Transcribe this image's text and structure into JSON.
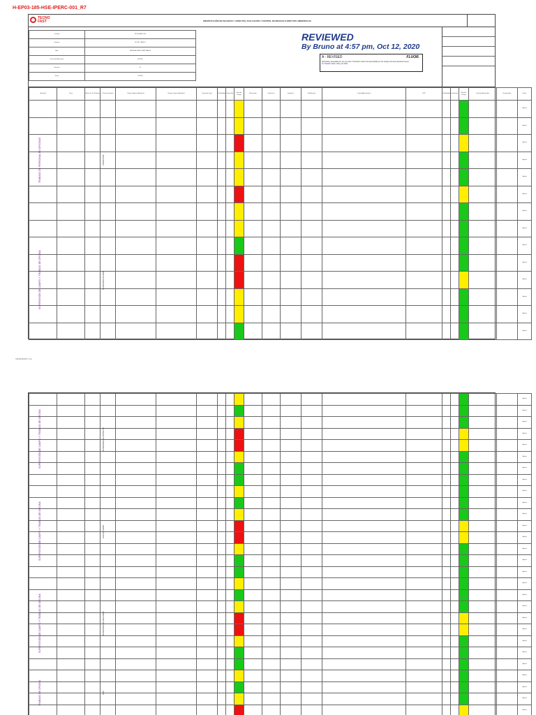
{
  "document": {
    "code": "H-EP03-185-HSE-IPERC-001_R7",
    "title": "IDENTIFICACIÓN DE PELIGROS Y ASPECTOS, EVALUACIÓN Y CONTROL DE RIESGOS E IMPACTOS AMBIENTALES",
    "logo_text_1": "TECNO",
    "logo_text_2": "FAST",
    "footer_note": "TECNOFAST S.A."
  },
  "stamp": {
    "title": "REVIEWED",
    "subtitle": "By Bruno at 4:57 pm, Oct 12, 2020",
    "revision": "A - REVISED",
    "brand": "FLUOR.",
    "note": "Submittal is acceptable for use as noted. Contractor retains full responsibility for the design and work described herein.",
    "signature": "Dr. Rodolfo Tello a May 1st 2021"
  },
  "header_rows": [
    {
      "label": "Contrato",
      "value": "TECNOFAST S.A."
    },
    {
      "label": "Proyecto",
      "value": "FLUOR - ANGLO"
    },
    {
      "label": "Área",
      "value": "INSTALACIONES TEMPORALES"
    },
    {
      "label": "Fecha de Elaboración",
      "value": "08-2020"
    },
    {
      "label": "Revisión",
      "value": "07"
    },
    {
      "label": "Fecha",
      "value": "10/2020"
    }
  ],
  "sections": [
    {
      "label": "TRABAJO DE PERSONAL EN OFICINAS",
      "sub": "CONDUCTOR"
    },
    {
      "label": "SUPERVISIÓN DE CAMPO Y TRABAJO DE OFICINA",
      "sub": "SUPERVISOR DE OBRA"
    },
    {
      "label": "SUPERVISIÓN DE CAMPO Y TRABAJO DE OFICINA",
      "sub": "SUPERVISOR DE PROYECTO"
    },
    {
      "label": "SUPERVISIÓN DE CAMPO Y TRABAJO DE OFICINA",
      "sub": "JEFE DE CAMPO"
    },
    {
      "label": "SUPERVISIÓN DE CAMPO Y TRABAJO DE OFICINA",
      "sub": "SUPERVISOR DE SEGURIDAD"
    },
    {
      "label": "TRABAJO DE OFICINA",
      "sub": "JEFE"
    }
  ],
  "column_headers": [
    "Actividad",
    "Tarea",
    "Rutinaria / No Rutinaria",
    "Puesto de trabajo",
    "Peligro / Aspecto Ambiental",
    "Riesgo / Impacto Ambiental",
    "Requisito Legal",
    "Probabilidad",
    "Severidad",
    "Nivel de Riesgo",
    "Eliminación",
    "Sustitución",
    "Ingeniería",
    "Señalización",
    "Control Administrativo",
    "EPP",
    "Probabilidad",
    "Severidad",
    "Nivel de Riesgo",
    "Controles Adicionales",
    "Responsable",
    "Fecha"
  ],
  "page1_rows": [
    {
      "level": "yellow",
      "residual": "green",
      "status": "Vigente"
    },
    {
      "level": "yellow",
      "residual": "green",
      "status": "Vigente"
    },
    {
      "level": "red",
      "residual": "yellow",
      "status": "Vigente"
    },
    {
      "level": "yellow",
      "residual": "green",
      "status": "Vigente"
    },
    {
      "level": "yellow",
      "residual": "green",
      "status": "Vigente"
    },
    {
      "level": "red",
      "residual": "yellow",
      "status": "Vigente"
    },
    {
      "level": "yellow",
      "residual": "green",
      "status": "Vigente"
    },
    {
      "level": "yellow",
      "residual": "green",
      "status": "Vigente"
    },
    {
      "level": "green",
      "residual": "green",
      "status": "Vigente"
    },
    {
      "level": "red",
      "residual": "green",
      "status": "Vigente"
    },
    {
      "level": "red",
      "residual": "yellow",
      "status": "Vigente"
    },
    {
      "level": "yellow",
      "residual": "green",
      "status": "Vigente"
    },
    {
      "level": "yellow",
      "residual": "green",
      "status": "Vigente"
    },
    {
      "level": "green",
      "residual": "green",
      "status": "Vigente"
    }
  ],
  "page2_rows": [
    {
      "level": "yellow",
      "residual": "green",
      "status": "Vigente"
    },
    {
      "level": "green",
      "residual": "green",
      "status": "Vigente"
    },
    {
      "level": "yellow",
      "residual": "green",
      "status": "Vigente"
    },
    {
      "level": "red",
      "residual": "yellow",
      "status": "Vigente"
    },
    {
      "level": "red",
      "residual": "yellow",
      "status": "Vigente"
    },
    {
      "level": "yellow",
      "residual": "green",
      "status": "Vigente"
    },
    {
      "level": "green",
      "residual": "green",
      "status": "Vigente"
    },
    {
      "level": "green",
      "residual": "green",
      "status": "Vigente"
    },
    {
      "level": "yellow",
      "residual": "green",
      "status": "Vigente"
    },
    {
      "level": "green",
      "residual": "green",
      "status": "Vigente"
    },
    {
      "level": "yellow",
      "residual": "green",
      "status": "Vigente"
    },
    {
      "level": "red",
      "residual": "yellow",
      "status": "Vigente"
    },
    {
      "level": "red",
      "residual": "yellow",
      "status": "Vigente"
    },
    {
      "level": "yellow",
      "residual": "green",
      "status": "Vigente"
    },
    {
      "level": "green",
      "residual": "green",
      "status": "Vigente"
    },
    {
      "level": "green",
      "residual": "green",
      "status": "Vigente"
    },
    {
      "level": "yellow",
      "residual": "green",
      "status": "Vigente"
    },
    {
      "level": "green",
      "residual": "green",
      "status": "Vigente"
    },
    {
      "level": "yellow",
      "residual": "green",
      "status": "Vigente"
    },
    {
      "level": "red",
      "residual": "yellow",
      "status": "Vigente"
    },
    {
      "level": "red",
      "residual": "yellow",
      "status": "Vigente"
    },
    {
      "level": "yellow",
      "residual": "green",
      "status": "Vigente"
    },
    {
      "level": "green",
      "residual": "green",
      "status": "Vigente"
    },
    {
      "level": "green",
      "residual": "green",
      "status": "Vigente"
    },
    {
      "level": "yellow",
      "residual": "green",
      "status": "Vigente"
    },
    {
      "level": "green",
      "residual": "green",
      "status": "Vigente"
    },
    {
      "level": "yellow",
      "residual": "green",
      "status": "Vigente"
    },
    {
      "level": "red",
      "residual": "yellow",
      "status": "Vigente"
    }
  ]
}
